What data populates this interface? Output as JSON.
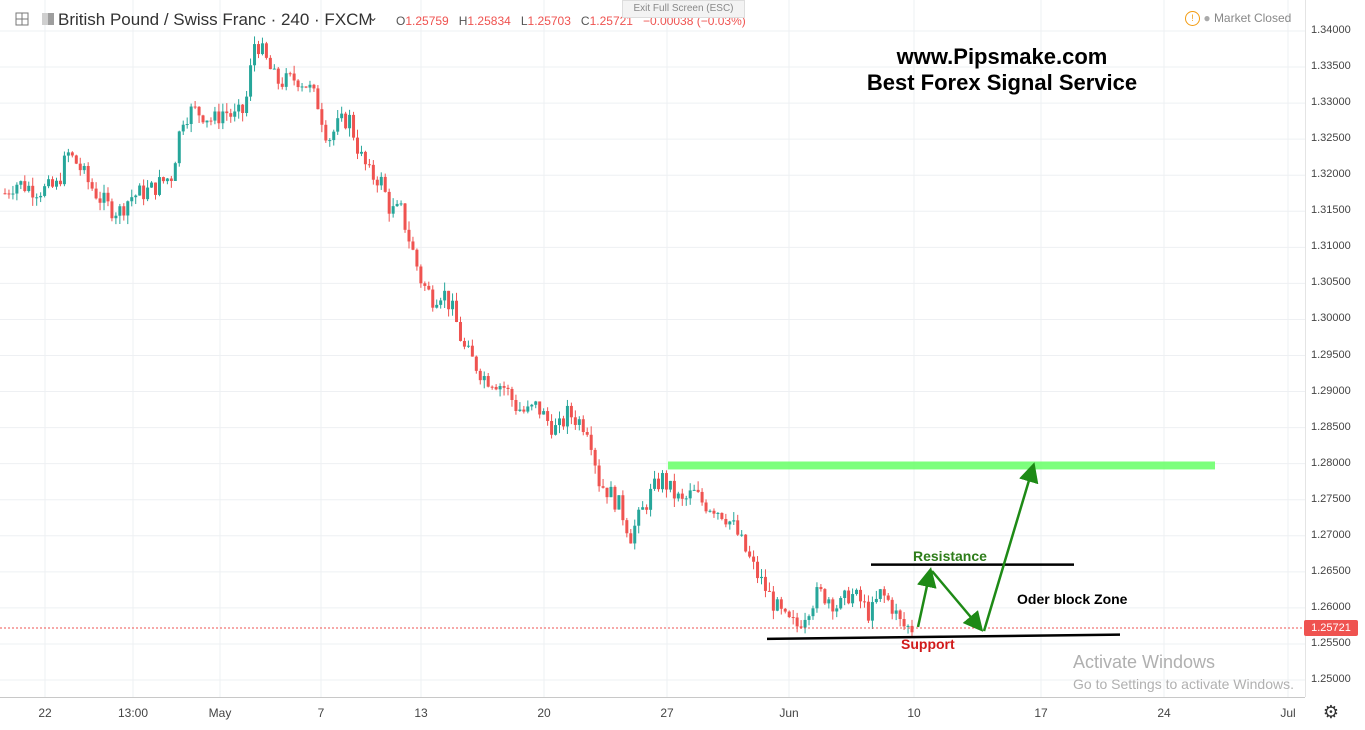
{
  "header": {
    "symbol_title": "British Pound / Swiss Franc · 240 · FXCM",
    "ohlc": {
      "o_label": "O",
      "o": "1.25759",
      "h_label": "H",
      "h": "1.25834",
      "l_label": "L",
      "l": "1.25703",
      "c_label": "C",
      "c": "1.25721",
      "change": "−0.00038 (−0.03%)"
    },
    "exit_fullscreen": "Exit Full Screen (ESC)",
    "market_status": "Market Closed",
    "icons": [
      "expand-icon",
      "logo-icon",
      "chevron-down-icon",
      "clock-warning-icon",
      "status-dot-icon"
    ]
  },
  "watermark": {
    "line1": "www.Pipsmake.com",
    "line2": "Best Forex Signal Service"
  },
  "annotations": {
    "resistance": "Resistance",
    "support": "Support",
    "order_block": "Oder block Zone",
    "colors": {
      "resistance": "#2e7d1a",
      "support": "#d11a1a",
      "zone": "#66ff66",
      "arrows": "#1e8a16"
    }
  },
  "price_axis": {
    "labels": [
      "1.34000",
      "1.33500",
      "1.33000",
      "1.32500",
      "1.32000",
      "1.31500",
      "1.31000",
      "1.30500",
      "1.30000",
      "1.29500",
      "1.29000",
      "1.28500",
      "1.28000",
      "1.27500",
      "1.27000",
      "1.26500",
      "1.26000",
      "1.25500",
      "1.25000"
    ],
    "last_price": "1.25721"
  },
  "time_axis": {
    "labels": [
      "22",
      "13:00",
      "May",
      "7",
      "13",
      "20",
      "27",
      "Jun",
      "10",
      "17",
      "24",
      "Jul"
    ]
  },
  "os_overlay": {
    "title": "Activate Windows",
    "subtitle": "Go to Settings to activate Windows."
  },
  "settings_icon": "gear-icon",
  "chart_data": {
    "type": "candlestick",
    "title": "British Pound / Swiss Franc · 240 · FXCM",
    "colors": {
      "up": "#26a69a",
      "down": "#ef5350"
    },
    "ylim": [
      1.2475,
      1.3405
    ],
    "y_ticks": [
      1.34,
      1.335,
      1.33,
      1.325,
      1.32,
      1.315,
      1.31,
      1.305,
      1.3,
      1.295,
      1.29,
      1.285,
      1.28,
      1.275,
      1.27,
      1.265,
      1.26,
      1.255,
      1.25
    ],
    "close_path": [
      1.3175,
      1.319,
      1.3185,
      1.318,
      1.318,
      1.3185,
      1.323,
      1.3215,
      1.319,
      1.317,
      1.3155,
      1.315,
      1.317,
      1.3175,
      1.318,
      1.319,
      1.32,
      1.328,
      1.329,
      1.3285,
      1.3275,
      1.329,
      1.328,
      1.329,
      1.339,
      1.336,
      1.333,
      1.333,
      1.3335,
      1.3325,
      1.33,
      1.325,
      1.327,
      1.328,
      1.323,
      1.32,
      1.3195,
      1.315,
      1.315,
      1.31,
      1.305,
      1.303,
      1.304,
      1.301,
      1.296,
      1.294,
      1.292,
      1.2915,
      1.2905,
      1.288,
      1.287,
      1.288,
      1.286,
      1.2845,
      1.287,
      1.286,
      1.285,
      1.2775,
      1.276,
      1.274,
      1.27,
      1.273,
      1.276,
      1.278,
      1.276,
      1.2745,
      1.276,
      1.2745,
      1.274,
      1.273,
      1.271,
      1.268,
      1.265,
      1.2625,
      1.26,
      1.258,
      1.2575,
      1.26,
      1.262,
      1.2615,
      1.26,
      1.262,
      1.261,
      1.259,
      1.262,
      1.2605,
      1.2575,
      1.2572
    ],
    "levels": {
      "green_zone": [
        1.2792,
        1.2803
      ],
      "resistance": 1.266,
      "support_start": 1.2557,
      "support_end": 1.2563,
      "current_price": 1.25721
    },
    "x_ticks": [
      "22",
      "13:00",
      "May",
      "7",
      "13",
      "20",
      "27",
      "Jun",
      "10",
      "17",
      "24",
      "Jul"
    ]
  }
}
